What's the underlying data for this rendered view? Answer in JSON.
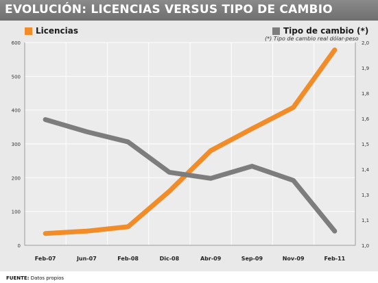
{
  "title": "EVOLUCIÓN: LICENCIAS VERSUS TIPO DE CAMBIO",
  "source": {
    "label": "FUENTE:",
    "text": "Datos propios"
  },
  "note": "(*) Tipo de cambio real dólar-peso",
  "colors": {
    "licencias": "#f28c28",
    "tipo_cambio": "#7d7d7d",
    "background": "#e9e9e9"
  },
  "chart_data": {
    "type": "line",
    "x": [
      "Feb-07",
      "Jun-07",
      "Feb-08",
      "Dic-08",
      "Abr-09",
      "Sep-09",
      "Nov-09",
      "Feb-11"
    ],
    "series": [
      {
        "name": "Licencias",
        "axis": "left",
        "color": "#f28c28",
        "values": [
          35,
          42,
          55,
          160,
          280,
          345,
          408,
          578
        ]
      },
      {
        "name": "Tipo de cambio (*)",
        "axis": "right",
        "color": "#7d7d7d",
        "values": [
          1.62,
          1.56,
          1.51,
          1.36,
          1.33,
          1.39,
          1.32,
          1.07
        ]
      }
    ],
    "ylim_left": [
      0,
      600
    ],
    "ylim_right": [
      1.0,
      2.0
    ],
    "yticks_left": [
      "0",
      "100",
      "200",
      "300",
      "400",
      "500",
      "600"
    ],
    "yticks_right": [
      "1,0",
      "1,1",
      "1,3",
      "1,4",
      "1,5",
      "1,6",
      "1,8",
      "1,9",
      "2,0"
    ],
    "grid": true,
    "legend": "top"
  }
}
